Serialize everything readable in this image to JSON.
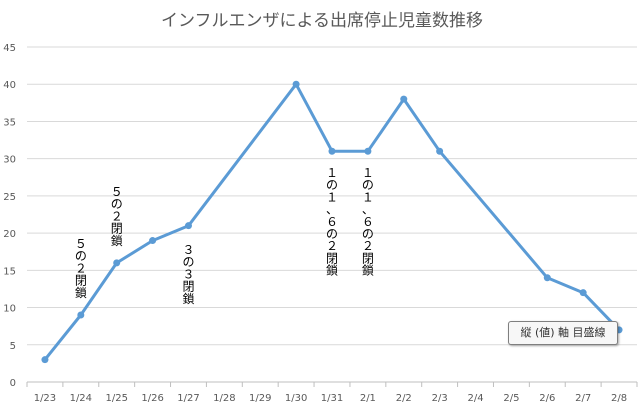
{
  "chart_data": {
    "type": "line",
    "title": "インフルエンザによる出席停止児童数推移",
    "categories": [
      "1/23",
      "1/24",
      "1/25",
      "1/26",
      "1/27",
      "1/28",
      "1/29",
      "1/30",
      "1/31",
      "2/1",
      "2/2",
      "2/3",
      "2/4",
      "2/5",
      "2/6",
      "2/7",
      "2/8"
    ],
    "series": [
      {
        "values": [
          3,
          9,
          16,
          19,
          21,
          null,
          null,
          40,
          31,
          31,
          38,
          31,
          null,
          null,
          14,
          12,
          7
        ]
      }
    ],
    "ylim": [
      0,
      45
    ],
    "yticks": [
      0,
      5,
      10,
      15,
      20,
      25,
      30,
      35,
      40,
      45
    ],
    "grid": true,
    "line_color": "#5b9bd5",
    "annotations": [
      {
        "category": "1/24",
        "text": "５の２閉鎖"
      },
      {
        "category": "1/25",
        "text": "５の２閉鎖"
      },
      {
        "category": "1/27",
        "text": "３の３閉鎖"
      },
      {
        "category": "1/31",
        "text": "１の１、６の２閉鎖"
      },
      {
        "category": "2/1",
        "text": "１の１、６の２閉鎖"
      }
    ]
  },
  "tooltip": {
    "text": "縦 (値) 軸 目盛線"
  }
}
